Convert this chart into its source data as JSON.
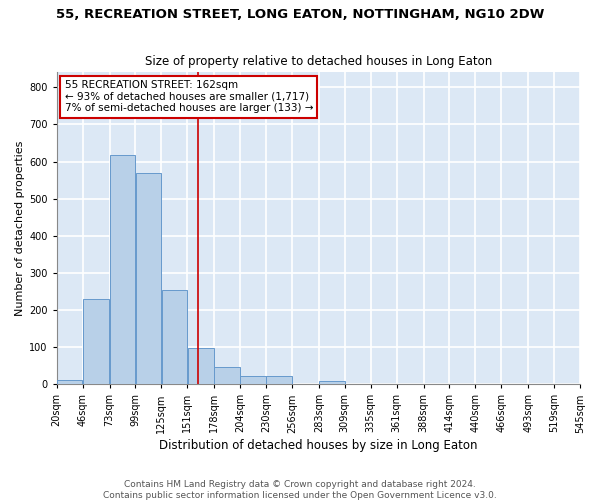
{
  "title": "55, RECREATION STREET, LONG EATON, NOTTINGHAM, NG10 2DW",
  "subtitle": "Size of property relative to detached houses in Long Eaton",
  "xlabel": "Distribution of detached houses by size in Long Eaton",
  "ylabel": "Number of detached properties",
  "bar_edges": [
    20,
    46,
    73,
    99,
    125,
    151,
    178,
    204,
    230,
    256,
    283,
    309,
    335,
    361,
    388,
    414,
    440,
    466,
    493,
    519,
    545
  ],
  "bar_heights": [
    10,
    230,
    617,
    570,
    255,
    97,
    46,
    22,
    22,
    0,
    8,
    0,
    0,
    0,
    0,
    0,
    0,
    0,
    0,
    0
  ],
  "bar_color": "#b8d0e8",
  "bar_edge_color": "#6699cc",
  "vline_x": 162,
  "vline_color": "#cc0000",
  "annotation_text_line1": "55 RECREATION STREET: 162sqm",
  "annotation_text_line2": "← 93% of detached houses are smaller (1,717)",
  "annotation_text_line3": "7% of semi-detached houses are larger (133) →",
  "ylim": [
    0,
    840
  ],
  "xlim": [
    20,
    545
  ],
  "yticks": [
    0,
    100,
    200,
    300,
    400,
    500,
    600,
    700,
    800
  ],
  "xtick_labels": [
    "20sqm",
    "46sqm",
    "73sqm",
    "99sqm",
    "125sqm",
    "151sqm",
    "178sqm",
    "204sqm",
    "230sqm",
    "256sqm",
    "283sqm",
    "309sqm",
    "335sqm",
    "361sqm",
    "388sqm",
    "414sqm",
    "440sqm",
    "466sqm",
    "493sqm",
    "519sqm",
    "545sqm"
  ],
  "footer_line1": "Contains HM Land Registry data © Crown copyright and database right 2024.",
  "footer_line2": "Contains public sector information licensed under the Open Government Licence v3.0.",
  "fig_background": "#ffffff",
  "plot_background": "#dce8f5",
  "grid_color": "#ffffff",
  "title_fontsize": 9.5,
  "subtitle_fontsize": 8.5,
  "xlabel_fontsize": 8.5,
  "ylabel_fontsize": 8,
  "tick_fontsize": 7,
  "footer_fontsize": 6.5,
  "annot_fontsize": 7.5
}
